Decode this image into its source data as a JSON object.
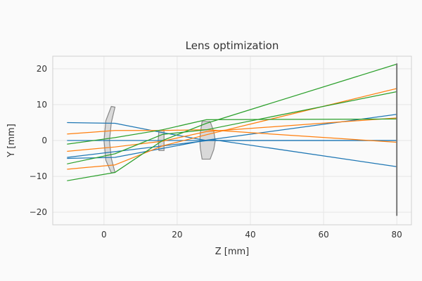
{
  "chart_data": {
    "type": "line",
    "title": "Lens optimization",
    "xlabel": "Z [mm]",
    "ylabel": "Y [mm]",
    "xlim": [
      -14,
      84
    ],
    "ylim": [
      -23.5,
      23.5
    ],
    "xticks": [
      0,
      20,
      40,
      60,
      80
    ],
    "yticks": [
      -20,
      -10,
      0,
      10,
      20
    ],
    "xtick_labels": [
      "0",
      "20",
      "40",
      "60",
      "80"
    ],
    "ytick_labels": [
      "−20",
      "−10",
      "0",
      "10",
      "20"
    ],
    "grid": true,
    "colors": {
      "background": "#fafafa",
      "plot_background": "#fafafa",
      "grid": "#e6e6e6",
      "spine": "#d0d0d0",
      "lens_fill": "#d9d9d9",
      "lens_edge": "#888888",
      "detector": "#777777",
      "blue": "#1f77b4",
      "orange": "#ff7f0e",
      "green": "#2ca02c"
    },
    "lenses": [
      {
        "name": "lens-1",
        "outline": [
          [
            2,
            9.5
          ],
          [
            3,
            9.3
          ],
          [
            2.0,
            5
          ],
          [
            1.5,
            0
          ],
          [
            2.0,
            -5
          ],
          [
            3,
            -8.9
          ],
          [
            2,
            -9.0
          ],
          [
            0.5,
            -5.5
          ],
          [
            0,
            0
          ],
          [
            0.5,
            5.5
          ],
          [
            2,
            9.5
          ]
        ]
      },
      {
        "name": "lens-2",
        "outline": [
          [
            15,
            2.8
          ],
          [
            16.4,
            2.8
          ],
          [
            16.4,
            -2.8
          ],
          [
            15,
            -2.8
          ],
          [
            14.8,
            0
          ],
          [
            15,
            2.8
          ]
        ]
      },
      {
        "name": "lens-3",
        "outline": [
          [
            26.8,
            5.3
          ],
          [
            29,
            5.3
          ],
          [
            30,
            2.5
          ],
          [
            30.4,
            0
          ],
          [
            30,
            -2.5
          ],
          [
            29,
            -5.2
          ],
          [
            26.8,
            -5.2
          ],
          [
            26.3,
            -2
          ],
          [
            26.2,
            0
          ],
          [
            26.3,
            2
          ],
          [
            26.8,
            5.3
          ]
        ]
      }
    ],
    "detector": {
      "x": 80,
      "ylim": [
        -21,
        21.5
      ]
    },
    "series": [
      {
        "color_key": "blue",
        "points": [
          [
            -10,
            5
          ],
          [
            3,
            4.8
          ],
          [
            16,
            2.2
          ],
          [
            28,
            0
          ],
          [
            80,
            0
          ]
        ]
      },
      {
        "color_key": "blue",
        "points": [
          [
            -10,
            0
          ],
          [
            80,
            0
          ]
        ]
      },
      {
        "color_key": "blue",
        "points": [
          [
            -10,
            -5
          ],
          [
            3,
            -4.7
          ],
          [
            16,
            -2.2
          ],
          [
            28,
            0.1
          ],
          [
            80,
            7.3
          ]
        ]
      },
      {
        "color_key": "blue",
        "points": [
          [
            -10,
            -4.7
          ],
          [
            30,
            0.2
          ],
          [
            80,
            -7.3
          ]
        ]
      },
      {
        "color_key": "orange",
        "points": [
          [
            -10,
            1.8
          ],
          [
            3,
            2.8
          ],
          [
            16,
            2.8
          ],
          [
            28,
            3.0
          ],
          [
            80,
            -0.5
          ]
        ]
      },
      {
        "color_key": "orange",
        "points": [
          [
            -10,
            -3
          ],
          [
            3,
            -1.8
          ],
          [
            16,
            -0.2
          ],
          [
            28,
            2.5
          ],
          [
            80,
            6.3
          ]
        ]
      },
      {
        "color_key": "orange",
        "points": [
          [
            -10,
            -8
          ],
          [
            3,
            -6.8
          ],
          [
            16,
            -1.5
          ],
          [
            28,
            1.6
          ],
          [
            80,
            14.5
          ]
        ]
      },
      {
        "color_key": "green",
        "points": [
          [
            -10,
            -11.2
          ],
          [
            3,
            -8.9
          ],
          [
            16,
            0.0
          ],
          [
            28,
            4.8
          ],
          [
            80,
            21.3
          ]
        ]
      },
      {
        "color_key": "green",
        "points": [
          [
            -10,
            -6.5
          ],
          [
            3,
            -3.7
          ],
          [
            16,
            1.7
          ],
          [
            28,
            3.0
          ],
          [
            80,
            13.6
          ]
        ]
      },
      {
        "color_key": "green",
        "points": [
          [
            -10,
            -1
          ],
          [
            3,
            0.8
          ],
          [
            16,
            3.0
          ],
          [
            28,
            5.8
          ],
          [
            80,
            6.0
          ]
        ]
      }
    ]
  }
}
